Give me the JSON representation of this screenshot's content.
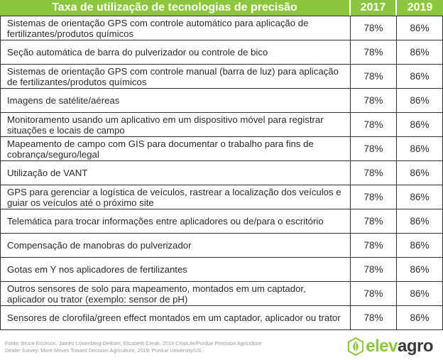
{
  "header": {
    "title": "Taxa de utilização de tecnologias de precisão",
    "year1": "2017",
    "year2": "2019"
  },
  "rows": [
    {
      "label": "Sistemas de orientação GPS com controle automático para aplicação de fertilizantes/produtos químicos",
      "v2017": "78%",
      "v2019": "86%"
    },
    {
      "label": "Seção automática de barra do pulverizador ou controle de bico",
      "v2017": "78%",
      "v2019": "86%"
    },
    {
      "label": "Sistemas de orientação GPS com controle manual (barra de luz) para aplicação de fertilizantes/produtos químicos",
      "v2017": "78%",
      "v2019": "86%"
    },
    {
      "label": "Imagens de satélite/aéreas",
      "v2017": "78%",
      "v2019": "86%"
    },
    {
      "label": "Monitoramento usando um aplicativo em um dispositivo móvel para registrar situações e locais de campo",
      "v2017": "78%",
      "v2019": "86%"
    },
    {
      "label": "Mapeamento de campo com GIS para documentar o trabalho para fins de cobrança/seguro/legal",
      "v2017": "78%",
      "v2019": "86%"
    },
    {
      "label": "Utilização de VANT",
      "v2017": "78%",
      "v2019": "86%"
    },
    {
      "label": "GPS para gerenciar a logística de veículos, rastrear a localização dos veículos e guiar os veículos até o próximo site",
      "v2017": "78%",
      "v2019": "86%"
    },
    {
      "label": "Telemática para trocar informações entre aplicadores ou de/para o escritório",
      "v2017": "78%",
      "v2019": "86%"
    },
    {
      "label": "Compensação de manobras do pulverizador",
      "v2017": "78%",
      "v2019": "86%"
    },
    {
      "label": "Gotas em Y nos aplicadores de fertilizantes",
      "v2017": "78%",
      "v2019": "86%"
    },
    {
      "label": "Outros sensores de solo para mapeamento, montados em um captador, aplicador ou trator (exemplo: sensor de pH)",
      "v2017": "78%",
      "v2019": "86%"
    },
    {
      "label": "Sensores de clorofila/green effect montados em um captador, aplicador ou trator",
      "v2017": "78%",
      "v2019": "86%"
    }
  ],
  "footer": {
    "source_line1": "Fonte: Bruce Erickson, James Lowenberg-DeBoer, Elizabeth Creak. 2019 CropLife/Purdue Precision Agriculture",
    "source_line2": "Dealer Survey: More Moves Toward Decision Agriculture, 2019, Purdue University/US."
  },
  "brand": {
    "name_part1": "elev",
    "name_part2": "agro",
    "icon": "leaf-hexagon-icon",
    "color_primary": "#8cc63f",
    "color_dark": "#3a3a3a"
  }
}
